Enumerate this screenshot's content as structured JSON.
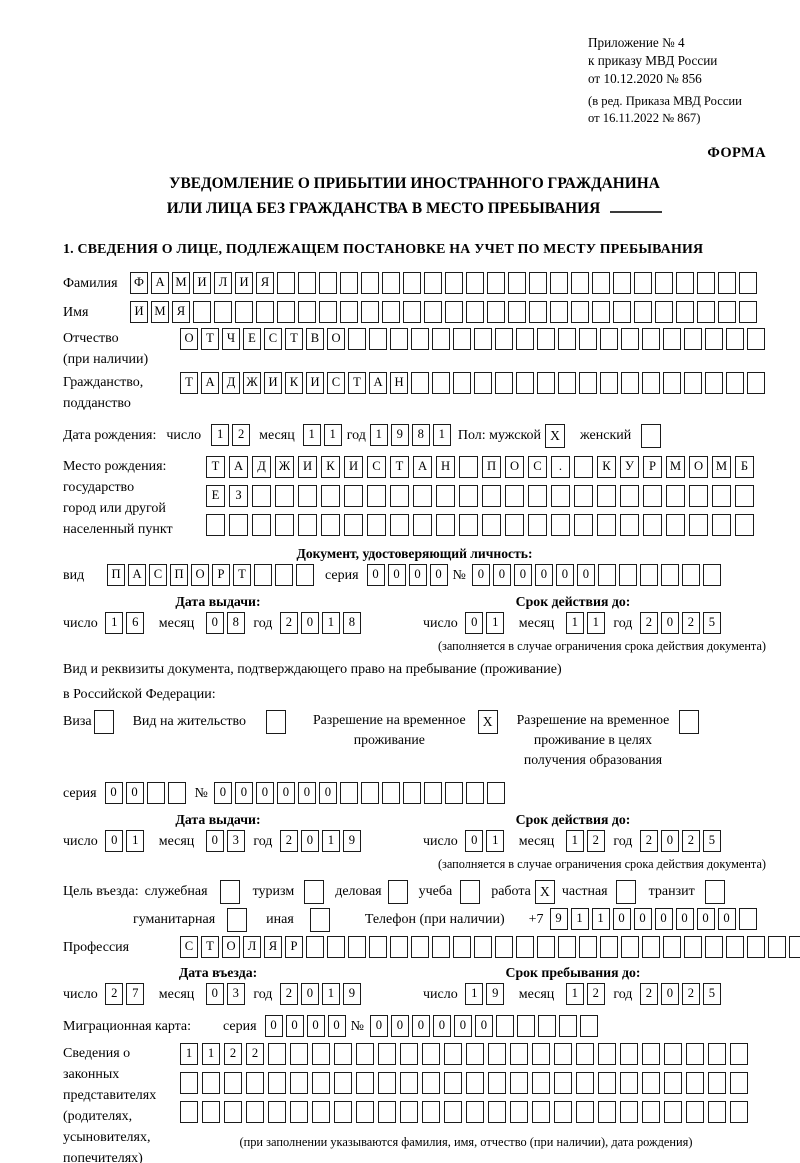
{
  "colors": {
    "ink": "#1b1b1b",
    "paper": "#ffffff"
  },
  "header": {
    "appendix1": "Приложение № 4",
    "appendix2": "к приказу МВД России",
    "appendix3": "от 10.12.2020 № 856",
    "edition1": "(в ред. Приказа МВД России",
    "edition2": "от 16.11.2022 № 867)",
    "forma": "ФОРМА"
  },
  "title": {
    "line1": "УВЕДОМЛЕНИЕ О ПРИБЫТИИ ИНОСТРАННОГО ГРАЖДАНИНА",
    "line2": "ИЛИ ЛИЦА БЕЗ ГРАЖДАНСТВА В МЕСТО ПРЕБЫВАНИЯ"
  },
  "section1": "1. СВЕДЕНИЯ О ЛИЦЕ, ПОДЛЕЖАЩЕМ ПОСТАНОВКЕ НА УЧЕТ ПО МЕСТУ ПРЕБЫВАНИЯ",
  "surname": {
    "label": "Фамилия",
    "cells": {
      "chars": "ФАМИЛИЯ",
      "len": 30
    }
  },
  "firstname": {
    "label": "Имя",
    "cells": {
      "chars": "ИМЯ",
      "len": 30
    }
  },
  "patronymic": {
    "label1": "Отчество",
    "label2": "(при наличии)",
    "cells": {
      "chars": "ОТЧЕСТВО",
      "len": 28
    }
  },
  "citizenship": {
    "label1": "Гражданство,",
    "label2": "подданство",
    "cells": {
      "chars": "ТАДЖИКИСТАН",
      "len": 28
    }
  },
  "birthdate": {
    "label": "Дата рождения:",
    "day_label": "число",
    "day": {
      "chars": "12",
      "len": 2
    },
    "month_label": "месяц",
    "month": {
      "chars": "11",
      "len": 2
    },
    "year_label": "год",
    "year": {
      "chars": "1981",
      "len": 4
    },
    "sex_label": "Пол: мужской",
    "male": "X",
    "female_label": "женский",
    "female": ""
  },
  "birthplace": {
    "label1": "Место рождения:",
    "label2": "государство",
    "label3": "город или другой",
    "label4": "населенный пункт",
    "row1": {
      "chars": "ТАДЖИКИСТАН ПОС. КУРМОМБ",
      "len": 24
    },
    "row2": {
      "chars": "ЕЗ",
      "len": 24
    },
    "row3": {
      "chars": "",
      "len": 24
    }
  },
  "iddoc": {
    "heading": "Документ, удостоверяющий личность:",
    "kind_label": "вид",
    "kind": {
      "chars": "ПАСПОРТ",
      "len": 10
    },
    "series_label": "серия",
    "series": {
      "chars": "0000",
      "len": 4
    },
    "number_label": "№",
    "number": {
      "chars": "000000",
      "len": 12
    },
    "issue_title": "Дата выдачи:",
    "issue_day_label": "число",
    "issue_day": {
      "chars": "16",
      "len": 2
    },
    "issue_month_label": "месяц",
    "issue_month": {
      "chars": "08",
      "len": 2
    },
    "issue_year_label": "год",
    "issue_year": {
      "chars": "2018",
      "len": 4
    },
    "expiry_title": "Срок действия до:",
    "expiry_day_label": "число",
    "expiry_day": {
      "chars": "01",
      "len": 2
    },
    "expiry_month_label": "месяц",
    "expiry_month": {
      "chars": "11",
      "len": 2
    },
    "expiry_year_label": "год",
    "expiry_year": {
      "chars": "2025",
      "len": 4
    },
    "expiry_note": "(заполняется в случае ограничения срока действия документа)"
  },
  "resdoc": {
    "intro1": "Вид и реквизиты документа, подтверждающего право на пребывание (проживание)",
    "intro2": "в Российской Федерации:",
    "visa_label": "Виза",
    "visa": "",
    "residence_permit_label": "Вид на жительство",
    "residence_permit": "",
    "rvp_line1": "Разрешение на временное",
    "rvp_line2": "проживание",
    "rvp": "X",
    "rvp_edu_line1": "Разрешение на временное",
    "rvp_edu_line2": "проживание в целях",
    "rvp_edu_line3": "получения образования",
    "rvp_edu": "",
    "series_label": "серия",
    "series": {
      "chars": "00",
      "len": 4
    },
    "number_label": "№",
    "number": {
      "chars": "000000",
      "len": 14
    },
    "issue_title": "Дата выдачи:",
    "issue_day_label": "число",
    "issue_day": {
      "chars": "01",
      "len": 2
    },
    "issue_month_label": "месяц",
    "issue_month": {
      "chars": "03",
      "len": 2
    },
    "issue_year_label": "год",
    "issue_year": {
      "chars": "2019",
      "len": 4
    },
    "expiry_title": "Срок действия до:",
    "expiry_day_label": "число",
    "expiry_day": {
      "chars": "01",
      "len": 2
    },
    "expiry_month_label": "месяц",
    "expiry_month": {
      "chars": "12",
      "len": 2
    },
    "expiry_year_label": "год",
    "expiry_year": {
      "chars": "2025",
      "len": 4
    },
    "expiry_note": "(заполняется в случае ограничения срока действия документа)"
  },
  "purpose": {
    "label": "Цель въезда:",
    "row1": [
      {
        "label": "служебная",
        "value": ""
      },
      {
        "label": "туризм",
        "value": ""
      },
      {
        "label": "деловая",
        "value": ""
      },
      {
        "label": "учеба",
        "value": ""
      },
      {
        "label": "работа",
        "value": "X"
      },
      {
        "label": "частная",
        "value": ""
      },
      {
        "label": "транзит",
        "value": ""
      }
    ],
    "row2": [
      {
        "label": "гуманитарная",
        "value": ""
      },
      {
        "label": "иная",
        "value": ""
      }
    ],
    "phone_label": "Телефон (при наличии)",
    "phone_prefix": "+7",
    "phone": {
      "chars": "911000000",
      "len": 10
    }
  },
  "profession": {
    "label": "Профессия",
    "cells": {
      "chars": "СТОЛЯР",
      "len": 30
    }
  },
  "entry": {
    "entry_title": "Дата въезда:",
    "entry_day_label": "число",
    "entry_day": {
      "chars": "27",
      "len": 2
    },
    "entry_month_label": "месяц",
    "entry_month": {
      "chars": "03",
      "len": 2
    },
    "entry_year_label": "год",
    "entry_year": {
      "chars": "2019",
      "len": 4
    },
    "stay_title": "Срок пребывания до:",
    "stay_day_label": "число",
    "stay_day": {
      "chars": "19",
      "len": 2
    },
    "stay_month_label": "месяц",
    "stay_month": {
      "chars": "12",
      "len": 2
    },
    "stay_year_label": "год",
    "stay_year": {
      "chars": "2025",
      "len": 4
    }
  },
  "migration_card": {
    "label": "Миграционная карта:",
    "series_label": "серия",
    "series": {
      "chars": "0000",
      "len": 4
    },
    "number_label": "№",
    "number": {
      "chars": "000000",
      "len": 11
    }
  },
  "representatives": {
    "label1": "Сведения о",
    "label2": "законных",
    "label3": "представителях",
    "label4": "(родителях,",
    "label5": "усыновителях,",
    "label6": "попечителях)",
    "row1": {
      "chars": "1122",
      "len": 26
    },
    "row2": {
      "chars": "",
      "len": 26
    },
    "row3": {
      "chars": "",
      "len": 26
    },
    "note": "(при заполнении указываются фамилия, имя, отчество (при наличии), дата рождения)"
  }
}
